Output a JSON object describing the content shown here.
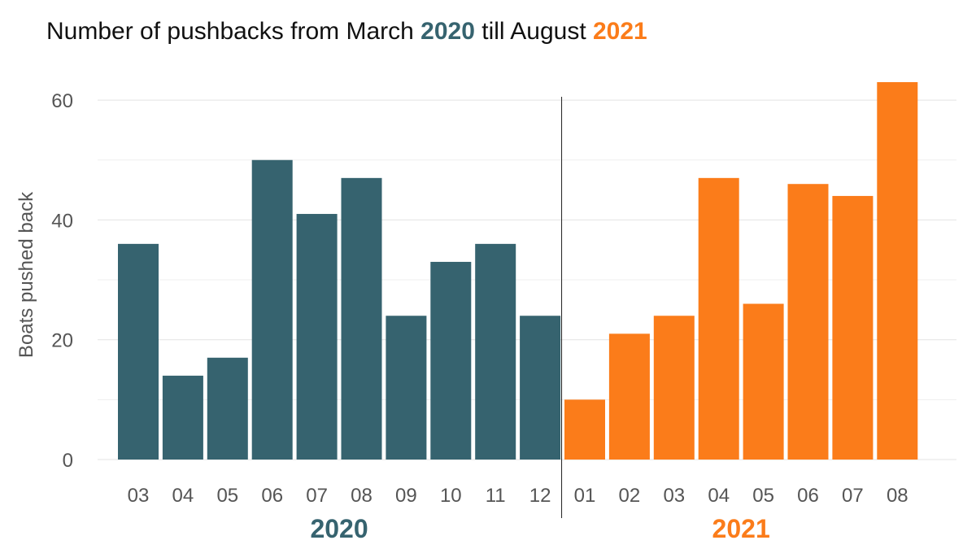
{
  "chart_data": {
    "type": "bar",
    "title": {
      "prefix": "Number of pushbacks from March ",
      "year1": "2020",
      "middle": " till August ",
      "year2": "2021"
    },
    "ylabel": "Boats pushed back",
    "xlabel": "",
    "ylim": [
      0,
      63
    ],
    "yticks": [
      0,
      20,
      40,
      60
    ],
    "grid": true,
    "legend": "none",
    "groups": [
      {
        "name": "2020",
        "color": "#36636f",
        "categories": [
          "03",
          "04",
          "05",
          "06",
          "07",
          "08",
          "09",
          "10",
          "11",
          "12"
        ],
        "values": [
          36,
          14,
          17,
          50,
          41,
          47,
          24,
          33,
          36,
          24
        ]
      },
      {
        "name": "2021",
        "color": "#fb7c1a",
        "categories": [
          "01",
          "02",
          "03",
          "04",
          "05",
          "06",
          "07",
          "08"
        ],
        "values": [
          10,
          21,
          24,
          47,
          26,
          46,
          44,
          63
        ]
      }
    ]
  }
}
